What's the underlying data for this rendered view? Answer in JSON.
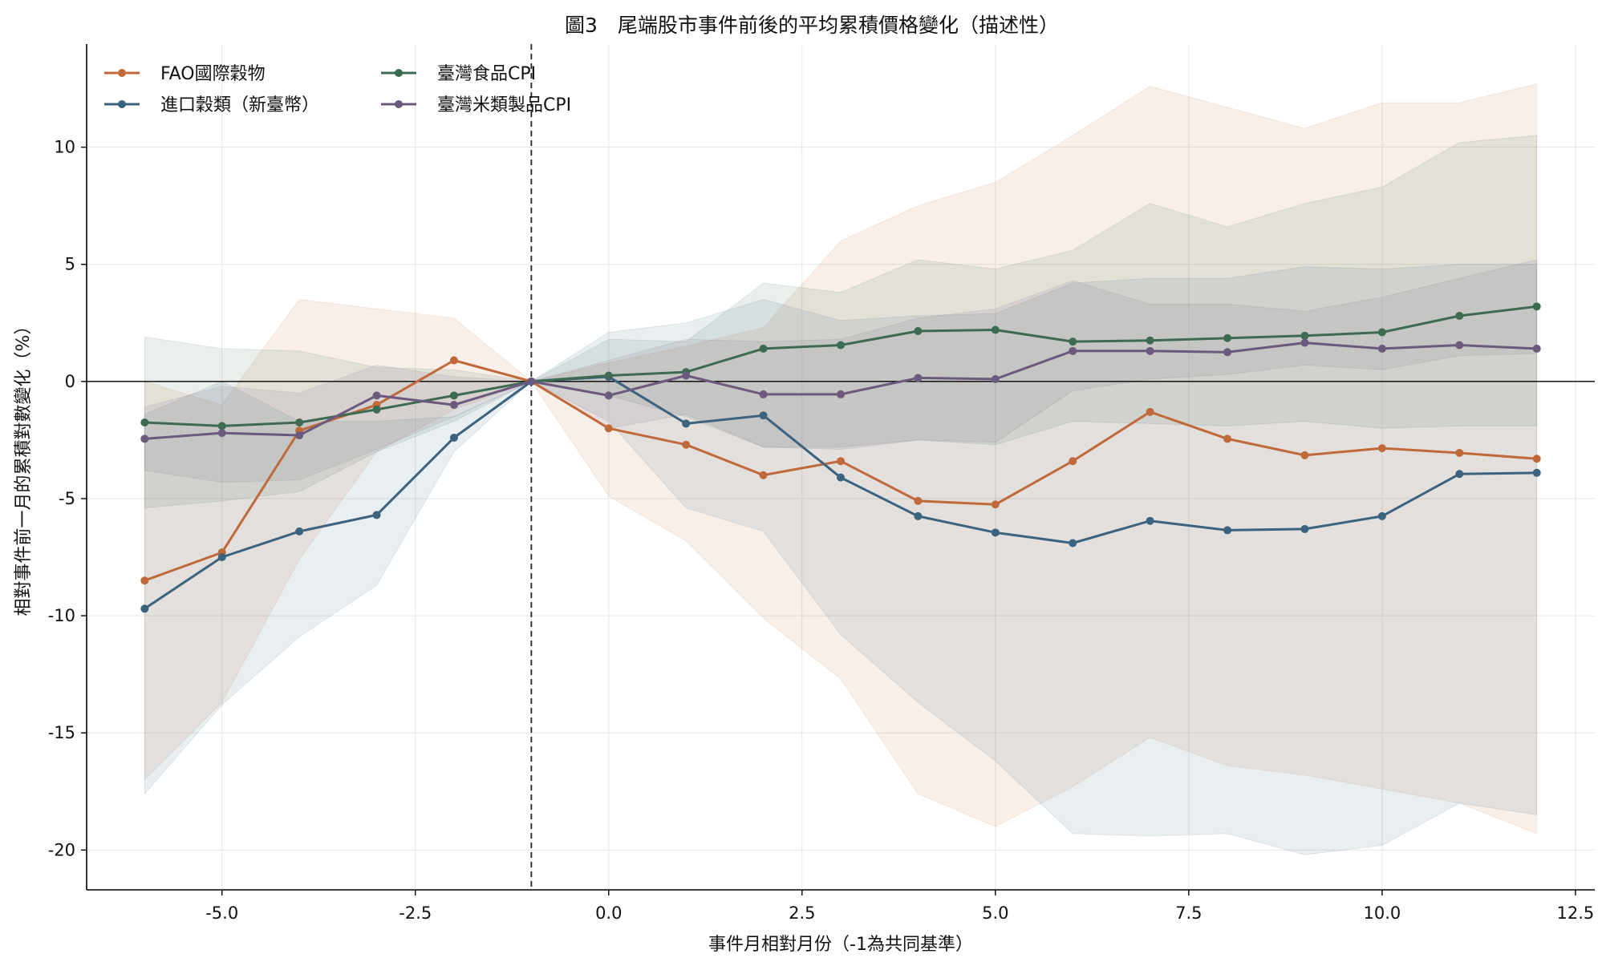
{
  "chart_data": {
    "type": "line",
    "title": "圖3　尾端股市事件前後的平均累積價格變化（描述性）",
    "xlabel": "事件月相對月份（-1為共同基準）",
    "ylabel": "相對事件前一月的累積對數變化（%）",
    "xlim": [
      -6.75,
      12.75
    ],
    "ylim": [
      -21.7,
      14.4
    ],
    "x_ticks": [
      -5.0,
      -2.5,
      0.0,
      2.5,
      5.0,
      7.5,
      10.0,
      12.5
    ],
    "x_tick_labels": [
      "-5.0",
      "-2.5",
      "0.0",
      "2.5",
      "5.0",
      "7.5",
      "10.0",
      "12.5"
    ],
    "y_ticks": [
      -20,
      -15,
      -10,
      -5,
      0,
      5,
      10
    ],
    "y_tick_labels": [
      "-20",
      "-15",
      "-10",
      "-5",
      "0",
      "5",
      "10"
    ],
    "grid": true,
    "legend_position": "top-left",
    "event_line_x": -1,
    "zero_line_y": 0,
    "x": [
      -6,
      -5,
      -4,
      -3,
      -2,
      -1,
      0,
      1,
      2,
      3,
      4,
      5,
      6,
      7,
      8,
      9,
      10,
      11,
      12
    ],
    "series": [
      {
        "name": "FAO國際穀物",
        "color": "#c0693a",
        "values": [
          -8.5,
          -7.3,
          -2.1,
          -1.0,
          0.9,
          0.0,
          -2.0,
          -2.7,
          -4.0,
          -3.4,
          -5.1,
          -5.25,
          -3.4,
          -1.3,
          -2.45,
          -3.15,
          -2.85,
          -3.05,
          -3.3
        ],
        "band_lower": [
          -17.0,
          -13.7,
          -7.6,
          -3.0,
          -1.2,
          0.0,
          -4.9,
          -6.8,
          -10.1,
          -12.7,
          -17.6,
          -19.0,
          -17.3,
          -15.2,
          -16.4,
          -16.8,
          -17.4,
          -18.0,
          -19.3
        ],
        "band_upper": [
          0.0,
          -1.0,
          3.5,
          3.1,
          2.7,
          0.0,
          0.8,
          1.5,
          2.3,
          6.0,
          7.5,
          8.5,
          10.5,
          12.6,
          11.7,
          10.8,
          11.9,
          11.9,
          12.7
        ]
      },
      {
        "name": "進口穀類（新臺幣）",
        "color": "#3b627e",
        "values": [
          -9.7,
          -7.5,
          -6.4,
          -5.7,
          -2.4,
          0.0,
          0.2,
          -1.8,
          -1.45,
          -4.1,
          -5.75,
          -6.45,
          -6.9,
          -5.95,
          -6.35,
          -6.3,
          -5.75,
          -3.95,
          -3.9
        ],
        "band_lower": [
          -17.6,
          -13.8,
          -10.9,
          -8.7,
          -3.0,
          0.0,
          -1.7,
          -5.4,
          -6.4,
          -10.8,
          -13.7,
          -16.2,
          -19.3,
          -19.4,
          -19.3,
          -20.2,
          -19.8,
          -18.0,
          -18.5
        ],
        "band_upper": [
          -1.4,
          0.0,
          -1.7,
          -1.7,
          -1.5,
          0.0,
          2.1,
          2.5,
          3.5,
          2.6,
          2.8,
          2.9,
          4.2,
          4.4,
          4.4,
          4.9,
          4.8,
          5.0,
          5.0
        ]
      },
      {
        "name": "臺灣食品CPI",
        "color": "#3d6b52",
        "values": [
          -1.75,
          -1.9,
          -1.75,
          -1.2,
          -0.6,
          0.0,
          0.25,
          0.4,
          1.4,
          1.55,
          2.15,
          2.2,
          1.7,
          1.75,
          1.85,
          1.95,
          2.1,
          2.8,
          3.2
        ],
        "band_lower": [
          -5.4,
          -5.1,
          -4.7,
          -3.0,
          -1.7,
          0.0,
          -0.6,
          -1.5,
          -2.8,
          -2.8,
          -2.5,
          -2.7,
          -1.7,
          -1.8,
          -1.9,
          -1.7,
          -2.0,
          -1.9,
          -1.9
        ],
        "band_upper": [
          1.9,
          1.4,
          1.3,
          0.6,
          0.5,
          0.0,
          1.8,
          1.7,
          4.2,
          3.8,
          5.2,
          4.8,
          5.6,
          7.6,
          6.6,
          7.6,
          8.3,
          10.2,
          10.5
        ]
      },
      {
        "name": "臺灣米類製品CPI",
        "color": "#6b5a7e",
        "values": [
          -2.45,
          -2.2,
          -2.3,
          -0.6,
          -1.0,
          0.0,
          -0.6,
          0.25,
          -0.55,
          -0.55,
          0.15,
          0.1,
          1.3,
          1.3,
          1.25,
          1.65,
          1.4,
          1.55,
          1.4
        ],
        "band_lower": [
          -3.8,
          -4.3,
          -4.2,
          -2.9,
          -1.5,
          0.0,
          -2.0,
          -1.4,
          -2.8,
          -2.9,
          -2.5,
          -2.6,
          -0.4,
          0.1,
          0.3,
          0.7,
          0.5,
          1.1,
          1.2
        ],
        "band_upper": [
          -1.1,
          -0.2,
          -0.5,
          0.7,
          0.2,
          0.0,
          0.9,
          1.8,
          1.7,
          1.8,
          2.7,
          3.1,
          4.3,
          3.3,
          3.3,
          3.0,
          3.6,
          4.4,
          5.2
        ]
      }
    ]
  }
}
